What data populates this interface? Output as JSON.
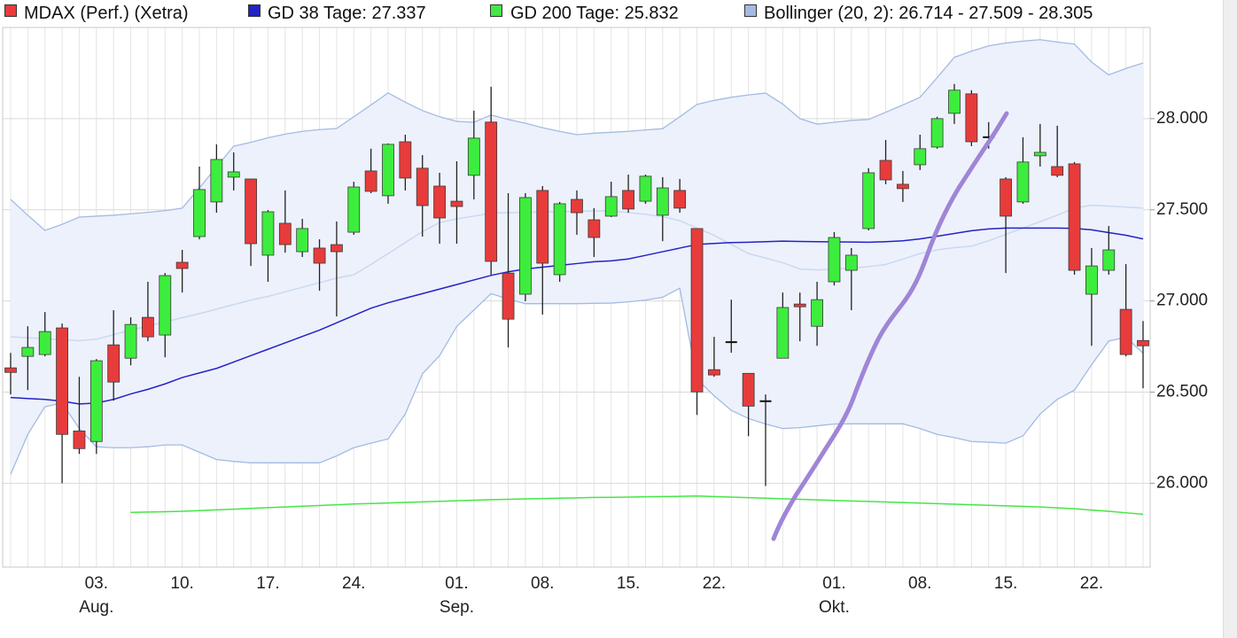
{
  "chart_data": {
    "type": "candlestick",
    "categories": [
      null,
      null,
      null,
      null,
      null,
      "03.",
      null,
      null,
      null,
      null,
      "10.",
      null,
      null,
      null,
      null,
      "17.",
      null,
      null,
      null,
      null,
      "24.",
      null,
      null,
      null,
      null,
      null,
      "01.",
      null,
      null,
      null,
      null,
      "08.",
      null,
      null,
      null,
      null,
      "15.",
      null,
      null,
      null,
      null,
      "22.",
      null,
      null,
      null,
      null,
      null,
      null,
      "01.",
      null,
      null,
      null,
      null,
      "08.",
      null,
      null,
      null,
      null,
      "15.",
      null,
      null,
      null,
      null,
      "22.",
      null,
      null,
      null
    ],
    "months": [
      null,
      null,
      null,
      null,
      null,
      "Aug.",
      null,
      null,
      null,
      null,
      null,
      null,
      null,
      null,
      null,
      null,
      null,
      null,
      null,
      null,
      null,
      null,
      null,
      null,
      null,
      null,
      "Sep.",
      null,
      null,
      null,
      null,
      null,
      null,
      null,
      null,
      null,
      null,
      null,
      null,
      null,
      null,
      null,
      null,
      null,
      null,
      null,
      null,
      null,
      "Okt.",
      null,
      null,
      null,
      null,
      null,
      null,
      null,
      null,
      null,
      null,
      null,
      null,
      null,
      null,
      null,
      null,
      null,
      null
    ],
    "candles": {
      "name": "MDAX (Perf.) (Xetra)",
      "color": "#e83b3b",
      "up_color": "#3ded3d",
      "down_color": "#e83b3b",
      "flat_color": "#111111",
      "open": [
        26633,
        26696,
        26706,
        26852,
        26287,
        26229,
        26759,
        26686,
        26910,
        26813,
        27212,
        27353,
        27543,
        27679,
        27669,
        27251,
        27426,
        27270,
        27290,
        27309,
        27377,
        27713,
        27577,
        27873,
        27728,
        27630,
        27547,
        27689,
        27981,
        27153,
        27037,
        27606,
        27144,
        27557,
        27445,
        27465,
        27606,
        27547,
        27470,
        27606,
        27397,
        26623,
        26774,
        26603,
        26450,
        26686,
        26983,
        26861,
        27105,
        27168,
        27397,
        27771,
        27640,
        27747,
        27844,
        28029,
        28136,
        27898,
        27669,
        27543,
        27796,
        27737,
        27752,
        27037,
        27168,
        26954,
        26783
      ],
      "high": [
        26715,
        26861,
        26939,
        26876,
        26584,
        26681,
        26949,
        26910,
        27105,
        27153,
        27280,
        27737,
        27859,
        27815,
        27669,
        27499,
        27606,
        27450,
        27338,
        27436,
        27654,
        27835,
        27864,
        27912,
        27800,
        27703,
        27766,
        28044,
        28175,
        27591,
        27591,
        27630,
        27543,
        27606,
        27509,
        27654,
        27693,
        27693,
        27679,
        27669,
        27397,
        26803,
        27007,
        26603,
        26487,
        27046,
        27046,
        27105,
        27377,
        27290,
        27728,
        27883,
        27713,
        27912,
        28010,
        28190,
        28156,
        27981,
        27679,
        27898,
        27971,
        27961,
        27762,
        27290,
        27411,
        27202,
        26890
      ],
      "low": [
        26487,
        26511,
        26696,
        26000,
        26161,
        26161,
        26453,
        26647,
        26779,
        26691,
        27046,
        27338,
        27484,
        27606,
        27192,
        27105,
        27265,
        27241,
        27056,
        26915,
        27363,
        27591,
        27533,
        27606,
        27353,
        27314,
        27314,
        27557,
        27144,
        26745,
        26998,
        26925,
        27105,
        27363,
        27241,
        27460,
        27484,
        27533,
        27328,
        27484,
        26375,
        26584,
        26716,
        26258,
        25985,
        26686,
        26779,
        26754,
        27085,
        26949,
        27387,
        27640,
        27543,
        27718,
        27835,
        27971,
        27849,
        27835,
        27153,
        27533,
        27737,
        27679,
        27144,
        26754,
        27144,
        26696,
        26521
      ],
      "close": [
        26608,
        26745,
        26832,
        26268,
        26190,
        26672,
        26555,
        26871,
        26803,
        27139,
        27178,
        27611,
        27776,
        27708,
        27314,
        27489,
        27309,
        27397,
        27207,
        27270,
        27625,
        27601,
        27859,
        27674,
        27523,
        27455,
        27518,
        27893,
        27217,
        26900,
        27567,
        27207,
        27533,
        27484,
        27348,
        27572,
        27504,
        27684,
        27620,
        27509,
        26501,
        26594,
        26774,
        26423,
        26450,
        26964,
        26968,
        27007,
        27348,
        27251,
        27703,
        27664,
        27616,
        27835,
        28000,
        28156,
        27873,
        27898,
        27465,
        27762,
        27815,
        27689,
        27168,
        27192,
        27280,
        26706,
        26754
      ]
    },
    "series": [
      {
        "name": "GD 38 Tage: 27.337",
        "color": "#2323c8",
        "values": [
          26470,
          26465,
          26460,
          26450,
          26435,
          26440,
          26460,
          26490,
          26515,
          26545,
          26580,
          26605,
          26630,
          26665,
          26700,
          26735,
          26770,
          26805,
          26840,
          26880,
          26920,
          26960,
          26990,
          27015,
          27040,
          27065,
          27090,
          27115,
          27140,
          27160,
          27175,
          27185,
          27195,
          27205,
          27215,
          27220,
          27230,
          27250,
          27270,
          27290,
          27310,
          27315,
          27320,
          27322,
          27325,
          27328,
          27326,
          27325,
          27324,
          27323,
          27322,
          27325,
          27330,
          27340,
          27355,
          27370,
          27385,
          27395,
          27400,
          27400,
          27400,
          27400,
          27398,
          27390,
          27375,
          27360,
          27340
        ]
      },
      {
        "name": "GD 200 Tage: 25.832",
        "color": "#45e645",
        "values": [
          null,
          null,
          null,
          null,
          null,
          null,
          null,
          25840,
          25842,
          25844,
          25846,
          25850,
          25854,
          25858,
          25862,
          25866,
          25870,
          25874,
          25878,
          25882,
          25886,
          25889,
          25892,
          25895,
          25898,
          25901,
          25904,
          25907,
          25910,
          25912,
          25914,
          25916,
          25918,
          25920,
          25922,
          25923,
          25924,
          25926,
          25927,
          25928,
          25930,
          25927,
          25924,
          25921,
          25918,
          25915,
          25912,
          25909,
          25906,
          25903,
          25900,
          25897,
          25894,
          25891,
          25888,
          25885,
          25882,
          25879,
          25876,
          25873,
          25870,
          25865,
          25860,
          25853,
          25846,
          25838,
          25830
        ]
      }
    ],
    "bands": {
      "name": "Bollinger (20, 2): 26.714 - 27.509 - 28.305",
      "color": "#a3bbe3",
      "fill": "#edf1fb",
      "mid_color": "#c9d9f2",
      "upper": [
        27557,
        27470,
        27387,
        27420,
        27460,
        27465,
        27470,
        27478,
        27486,
        27495,
        27509,
        27620,
        27735,
        27849,
        27870,
        27895,
        27915,
        27930,
        27940,
        27946,
        28010,
        28075,
        28141,
        28090,
        28044,
        28010,
        27985,
        27980,
        28020,
        27995,
        27975,
        27950,
        27930,
        27912,
        27920,
        27925,
        27930,
        27938,
        27945,
        28010,
        28078,
        28100,
        28117,
        28130,
        28140,
        28080,
        28000,
        27970,
        27980,
        27990,
        27995,
        28035,
        28075,
        28117,
        28225,
        28336,
        28370,
        28399,
        28415,
        28425,
        28433,
        28420,
        28409,
        28310,
        28240,
        28275,
        28305
      ],
      "middle": [
        26803,
        26798,
        26793,
        26788,
        26782,
        26790,
        26815,
        26840,
        26862,
        26885,
        26908,
        26930,
        26955,
        26980,
        27005,
        27025,
        27050,
        27075,
        27100,
        27125,
        27144,
        27200,
        27260,
        27320,
        27380,
        27430,
        27450,
        27465,
        27482,
        27484,
        27486,
        27488,
        27490,
        27492,
        27493,
        27494,
        27485,
        27475,
        27462,
        27440,
        27400,
        27360,
        27310,
        27260,
        27235,
        27210,
        27175,
        27170,
        27175,
        27180,
        27188,
        27200,
        27230,
        27260,
        27280,
        27292,
        27300,
        27330,
        27365,
        27400,
        27435,
        27470,
        27510,
        27525,
        27520,
        27515,
        27509
      ],
      "lower": [
        26049,
        26268,
        26420,
        26440,
        26300,
        26200,
        26195,
        26195,
        26200,
        26210,
        26210,
        26170,
        26130,
        26120,
        26112,
        26112,
        26112,
        26112,
        26112,
        26150,
        26195,
        26220,
        26243,
        26380,
        26600,
        26700,
        26860,
        26950,
        27040,
        27010,
        26985,
        26985,
        26985,
        26985,
        26987,
        26988,
        26995,
        27005,
        27020,
        27070,
        26570,
        26480,
        26400,
        26355,
        26325,
        26300,
        26305,
        26315,
        26325,
        26326,
        26326,
        26326,
        26326,
        26300,
        26268,
        26250,
        26229,
        26225,
        26220,
        26260,
        26380,
        26460,
        26511,
        26650,
        26780,
        26800,
        26714
      ]
    },
    "ylim": [
      25540,
      28500
    ],
    "yticks": [
      {
        "value": 26000,
        "label": "26.000"
      },
      {
        "value": 26500,
        "label": "26.500"
      },
      {
        "value": 27000,
        "label": "27.000"
      },
      {
        "value": 27500,
        "label": "27.500"
      },
      {
        "value": 28000,
        "label": "28.000"
      }
    ],
    "grid": true
  }
}
